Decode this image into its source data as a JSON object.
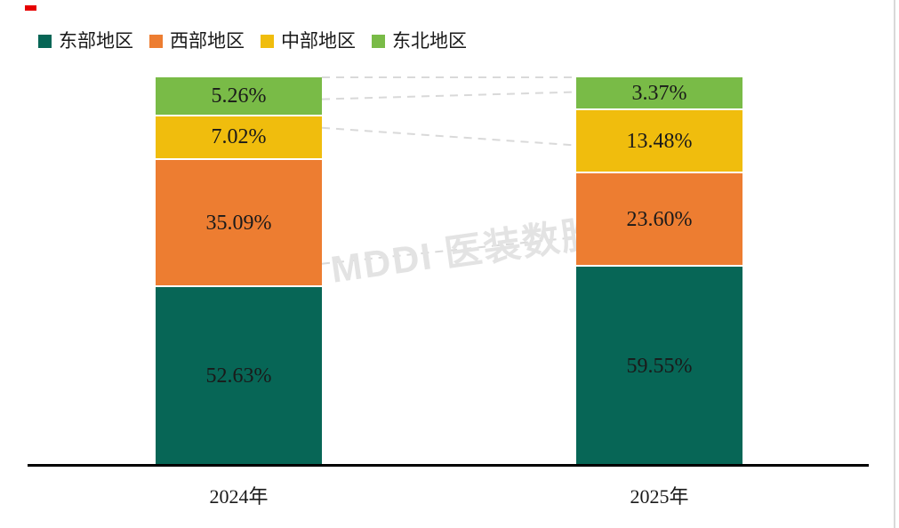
{
  "watermark": {
    "text": "MDDI 医装数胜"
  },
  "colors": {
    "east": "#076656",
    "west": "#ED7D31",
    "central": "#F0BD0D",
    "northeast": "#79BB47",
    "connector_line": "#D9D9D9",
    "axis_line": "#000000",
    "label_text": "#1A1A1A",
    "watermark_text": "#E3E3E3",
    "corner_mark": "#E60000"
  },
  "chart_data": {
    "type": "bar",
    "subtype": "percent-stacked-column",
    "title": "",
    "xlabel": "",
    "ylabel": "",
    "ylim": [
      0,
      100
    ],
    "grid": false,
    "legend_position": "top-left",
    "categories": [
      "2024年",
      "2025年"
    ],
    "stack_order_bottom_to_top": [
      "东部地区",
      "西部地区",
      "中部地区",
      "东北地区"
    ],
    "series": [
      {
        "name": "东部地区",
        "color": "#076656",
        "values": [
          52.63,
          59.55
        ],
        "labels": [
          "52.63%",
          "59.55%"
        ]
      },
      {
        "name": "西部地区",
        "color": "#ED7D31",
        "values": [
          35.09,
          23.6
        ],
        "labels": [
          "35.09%",
          "23.60%"
        ]
      },
      {
        "name": "中部地区",
        "color": "#F0BD0D",
        "values": [
          7.02,
          13.48
        ],
        "labels": [
          "7.02%",
          "13.48%"
        ]
      },
      {
        "name": "东北地区",
        "color": "#79BB47",
        "values": [
          5.26,
          3.37
        ],
        "labels": [
          "5.26%",
          "3.37%"
        ]
      }
    ]
  }
}
